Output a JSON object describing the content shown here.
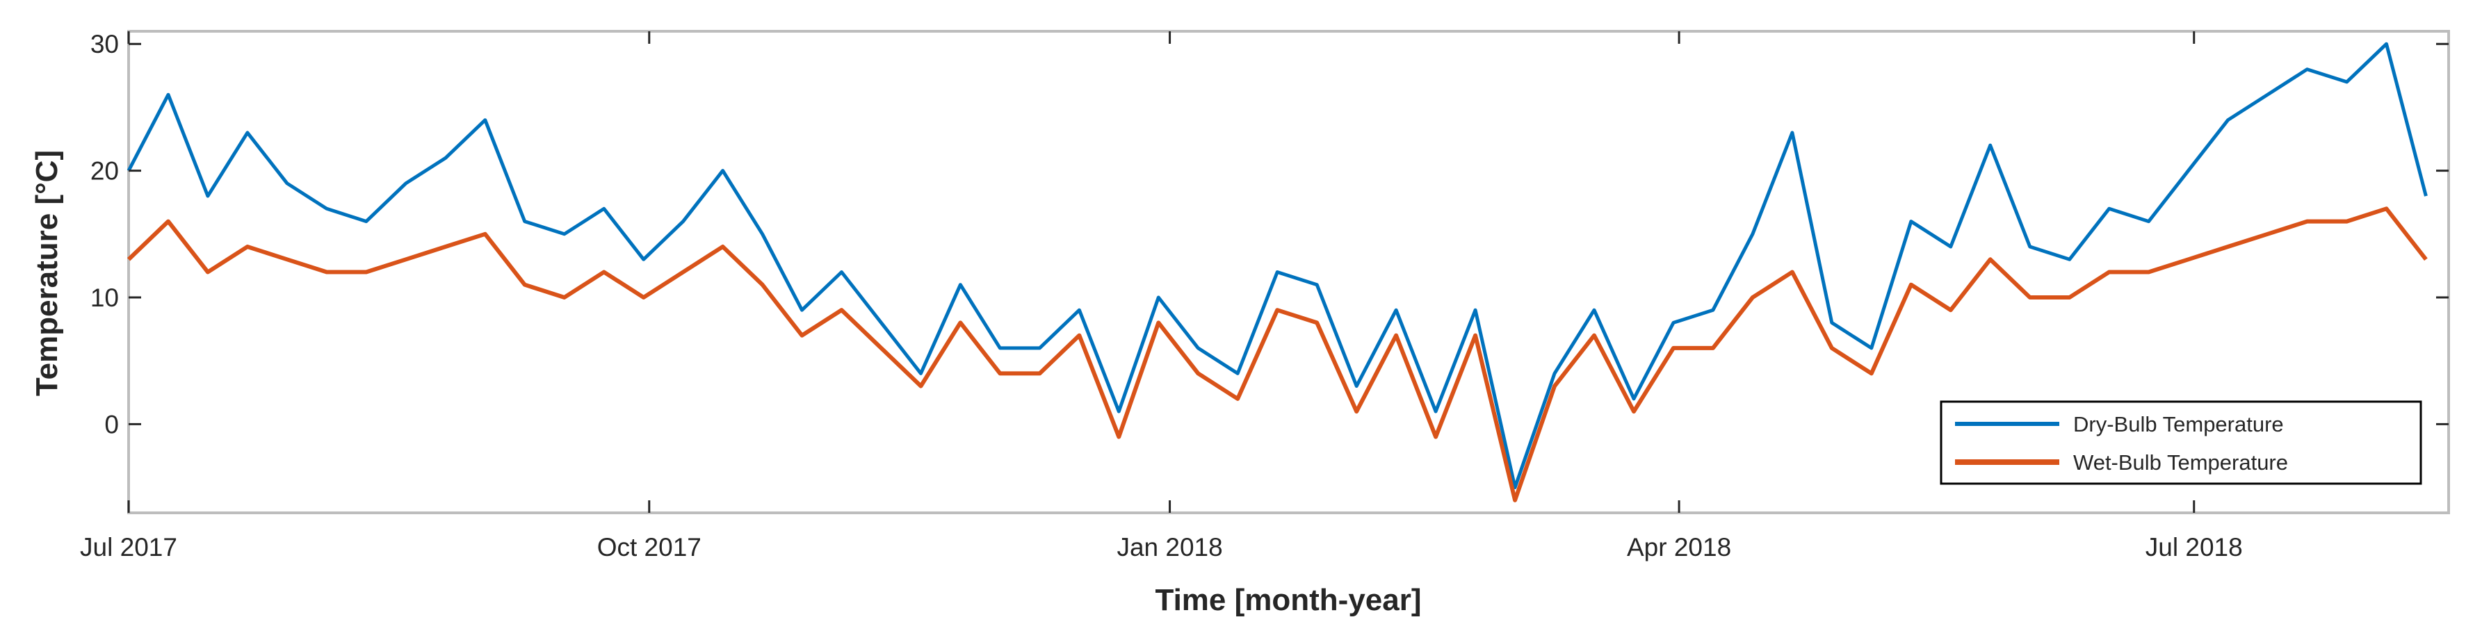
{
  "chart_data": {
    "type": "line",
    "title": "",
    "xlabel": "Time [month-year]",
    "ylabel": "Temperature [°C]",
    "x_range": [
      "2017-07-01",
      "2018-08-15"
    ],
    "ylim": [
      -7,
      31
    ],
    "y_ticks": [
      0,
      10,
      20,
      30
    ],
    "x_ticks": [
      {
        "date": "2017-07-01",
        "label": "Jul 2017"
      },
      {
        "date": "2017-10-01",
        "label": "Oct 2017"
      },
      {
        "date": "2018-01-01",
        "label": "Jan 2018"
      },
      {
        "date": "2018-04-01",
        "label": "Apr 2018"
      },
      {
        "date": "2018-07-01",
        "label": "Jul 2018"
      }
    ],
    "grid": false,
    "legend_position": "bottom-right",
    "series": [
      {
        "name": "Dry-Bulb Temperature",
        "color": "#0072BD",
        "x": [
          "2017-07-01",
          "2017-07-08",
          "2017-07-15",
          "2017-07-22",
          "2017-07-29",
          "2017-08-05",
          "2017-08-12",
          "2017-08-19",
          "2017-08-26",
          "2017-09-02",
          "2017-09-09",
          "2017-09-16",
          "2017-09-23",
          "2017-09-30",
          "2017-10-07",
          "2017-10-14",
          "2017-10-21",
          "2017-10-28",
          "2017-11-04",
          "2017-11-11",
          "2017-11-18",
          "2017-11-25",
          "2017-12-02",
          "2017-12-09",
          "2017-12-16",
          "2017-12-23",
          "2017-12-30",
          "2018-01-06",
          "2018-01-13",
          "2018-01-20",
          "2018-01-27",
          "2018-02-03",
          "2018-02-10",
          "2018-02-17",
          "2018-02-24",
          "2018-03-03",
          "2018-03-10",
          "2018-03-17",
          "2018-03-24",
          "2018-03-31",
          "2018-04-07",
          "2018-04-14",
          "2018-04-21",
          "2018-04-28",
          "2018-05-05",
          "2018-05-12",
          "2018-05-19",
          "2018-05-26",
          "2018-06-02",
          "2018-06-09",
          "2018-06-16",
          "2018-06-23",
          "2018-06-30",
          "2018-07-07",
          "2018-07-14",
          "2018-07-21",
          "2018-07-28",
          "2018-08-04",
          "2018-08-11"
        ],
        "y": [
          20,
          26,
          18,
          23,
          19,
          17,
          16,
          19,
          21,
          24,
          16,
          15,
          17,
          13,
          16,
          20,
          15,
          9,
          12,
          8,
          4,
          11,
          6,
          6,
          9,
          1,
          10,
          6,
          4,
          12,
          11,
          3,
          9,
          1,
          9,
          -5,
          4,
          9,
          2,
          8,
          9,
          15,
          23,
          8,
          6,
          16,
          14,
          22,
          14,
          13,
          17,
          16,
          20,
          24,
          26,
          28,
          27,
          30,
          18
        ]
      },
      {
        "name": "Wet-Bulb Temperature",
        "color": "#D95319",
        "x": [
          "2017-07-01",
          "2017-07-08",
          "2017-07-15",
          "2017-07-22",
          "2017-07-29",
          "2017-08-05",
          "2017-08-12",
          "2017-08-19",
          "2017-08-26",
          "2017-09-02",
          "2017-09-09",
          "2017-09-16",
          "2017-09-23",
          "2017-09-30",
          "2017-10-07",
          "2017-10-14",
          "2017-10-21",
          "2017-10-28",
          "2017-11-04",
          "2017-11-11",
          "2017-11-18",
          "2017-11-25",
          "2017-12-02",
          "2017-12-09",
          "2017-12-16",
          "2017-12-23",
          "2017-12-30",
          "2018-01-06",
          "2018-01-13",
          "2018-01-20",
          "2018-01-27",
          "2018-02-03",
          "2018-02-10",
          "2018-02-17",
          "2018-02-24",
          "2018-03-03",
          "2018-03-10",
          "2018-03-17",
          "2018-03-24",
          "2018-03-31",
          "2018-04-07",
          "2018-04-14",
          "2018-04-21",
          "2018-04-28",
          "2018-05-05",
          "2018-05-12",
          "2018-05-19",
          "2018-05-26",
          "2018-06-02",
          "2018-06-09",
          "2018-06-16",
          "2018-06-23",
          "2018-06-30",
          "2018-07-07",
          "2018-07-14",
          "2018-07-21",
          "2018-07-28",
          "2018-08-04",
          "2018-08-11"
        ],
        "y": [
          13,
          16,
          12,
          14,
          13,
          12,
          12,
          13,
          14,
          15,
          11,
          10,
          12,
          10,
          12,
          14,
          11,
          7,
          9,
          6,
          3,
          8,
          4,
          4,
          7,
          -1,
          8,
          4,
          2,
          9,
          8,
          1,
          7,
          -1,
          7,
          -6,
          3,
          7,
          1,
          6,
          6,
          10,
          12,
          6,
          4,
          11,
          9,
          13,
          10,
          10,
          12,
          12,
          13,
          14,
          15,
          16,
          16,
          17,
          13
        ]
      }
    ]
  }
}
